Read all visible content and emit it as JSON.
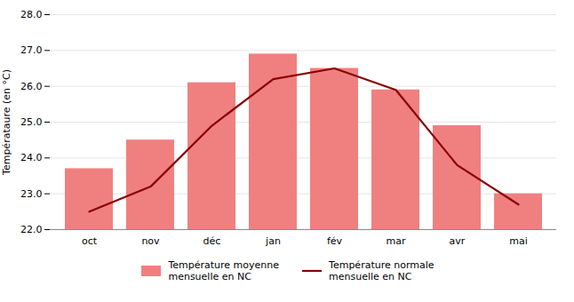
{
  "chart_data": {
    "type": "bar",
    "categories": [
      "oct",
      "nov",
      "déc",
      "jan",
      "fév",
      "mar",
      "avr",
      "mai"
    ],
    "series": [
      {
        "name": "Température moyenne\nmensuelle en NC",
        "type": "bar",
        "color": "#F08080",
        "values": [
          23.7,
          24.5,
          26.1,
          26.9,
          26.5,
          25.9,
          24.9,
          23.0
        ]
      },
      {
        "name": "Température normale\nmensuelle en NC",
        "type": "line",
        "color": "#8B0000",
        "values": [
          22.5,
          23.2,
          24.9,
          26.2,
          26.5,
          25.9,
          23.8,
          22.7
        ]
      }
    ],
    "ylabel": "Températaure (en °C)",
    "ylim": [
      22,
      28
    ],
    "yticks": [
      22,
      23,
      24,
      25,
      26,
      27,
      28
    ],
    "grid": true,
    "legend": "bottom"
  }
}
